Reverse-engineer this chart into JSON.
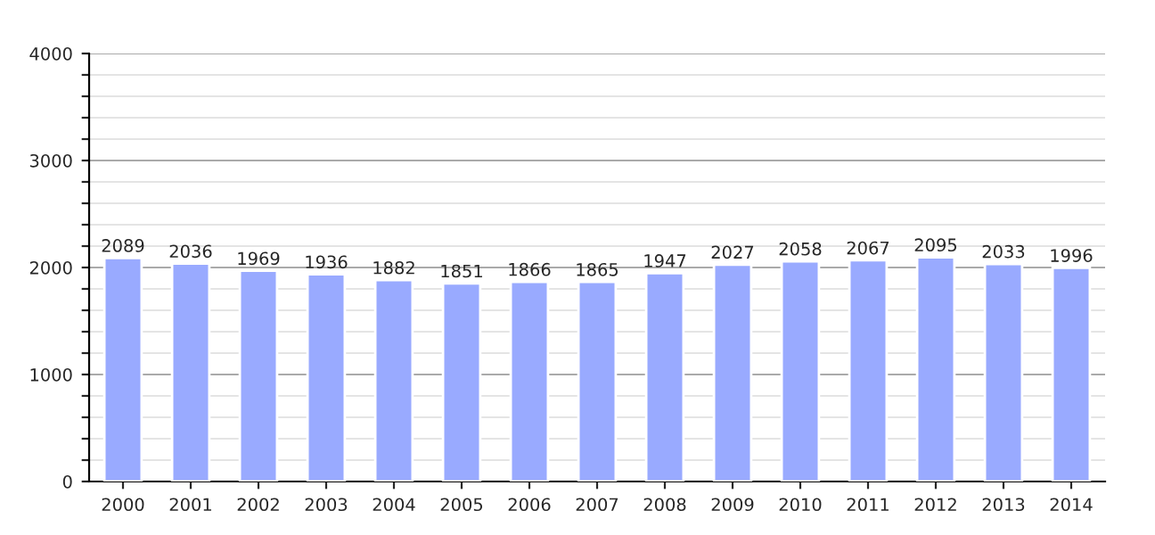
{
  "chart_data": {
    "type": "bar",
    "categories": [
      "2000",
      "2001",
      "2002",
      "2003",
      "2004",
      "2005",
      "2006",
      "2007",
      "2008",
      "2009",
      "2010",
      "2011",
      "2012",
      "2013",
      "2014"
    ],
    "values": [
      2089,
      2036,
      1969,
      1936,
      1882,
      1851,
      1866,
      1865,
      1947,
      2027,
      2058,
      2067,
      2095,
      2033,
      1996
    ],
    "color": "#99aaff",
    "ylim": [
      0,
      4000
    ],
    "yticks": [
      0,
      {
        "value": 200,
        "label": null
      },
      {
        "value": 400,
        "label": null
      },
      {
        "value": 600,
        "label": null
      },
      {
        "value": 800,
        "label": null
      },
      1000,
      {
        "value": 1200,
        "label": null
      },
      {
        "value": 1400,
        "label": null
      },
      {
        "value": 1600,
        "label": null
      },
      {
        "value": 1800,
        "label": null
      },
      2000,
      {
        "value": 2200,
        "label": null
      },
      {
        "value": 2400,
        "label": null
      },
      {
        "value": 2600,
        "label": null
      },
      {
        "value": 2800,
        "label": null
      },
      3000,
      {
        "value": 3200,
        "label": null
      },
      {
        "value": 3400,
        "label": null
      },
      {
        "value": 3600,
        "label": null
      },
      {
        "value": 3800,
        "label": null
      },
      4000
    ],
    "grid": "y",
    "data_labels": true
  }
}
